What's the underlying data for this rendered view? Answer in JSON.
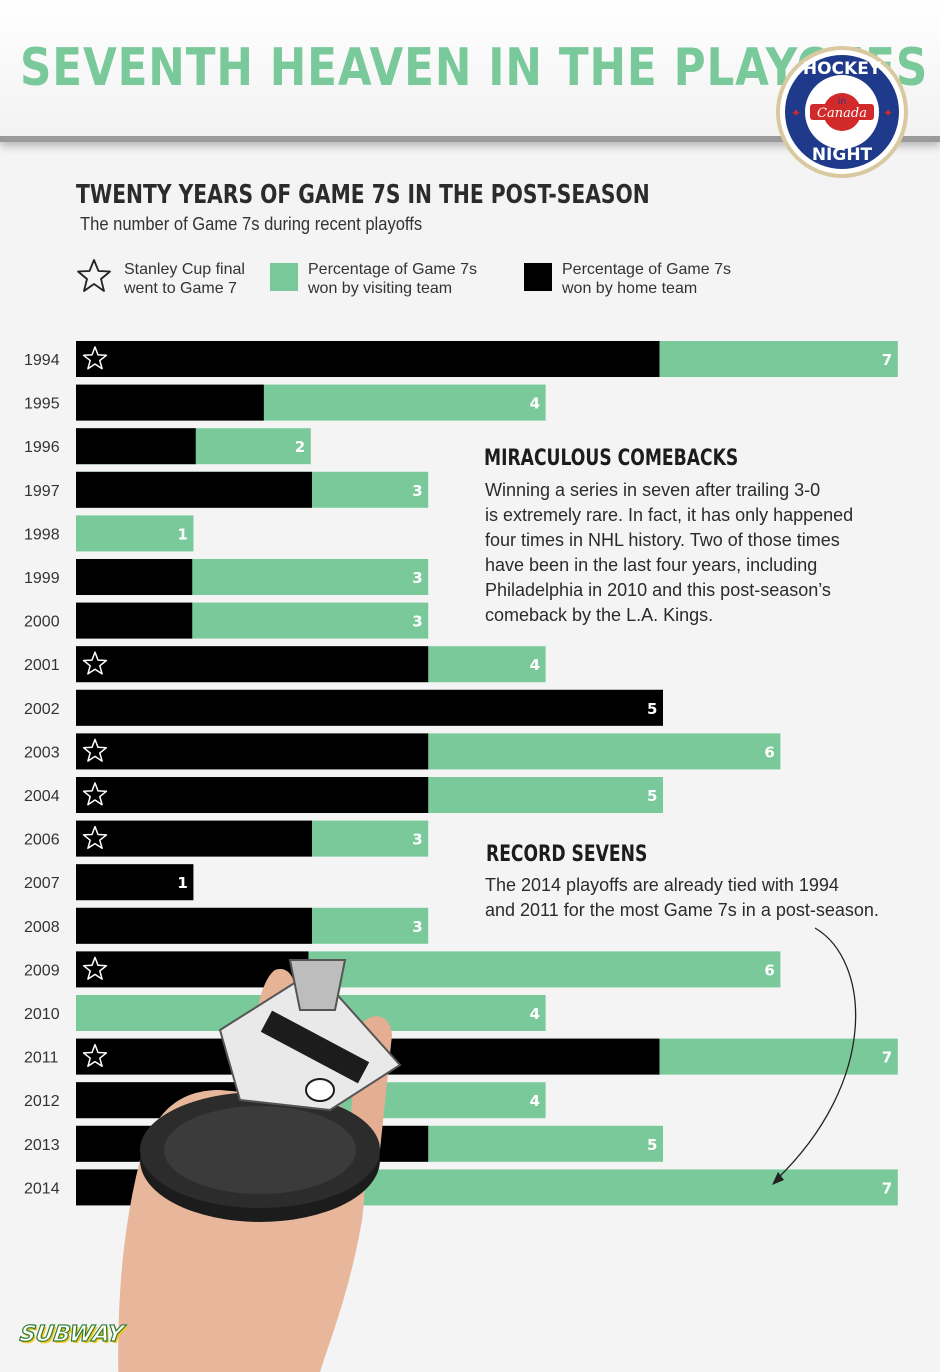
{
  "header": {
    "title": "SEVENTH HEAVEN IN THE PLAYOFFS"
  },
  "logo": {
    "line1": "HOCKEY",
    "line2": "in",
    "line3": "Canada",
    "line4": "NIGHT"
  },
  "chart_heading": "TWENTY YEARS OF GAME 7S IN THE POST-SEASON",
  "chart_subheading": "The number of Game 7s during recent playoffs",
  "legend": {
    "star": {
      "line1": "Stanley Cup final",
      "line2": "went to Game 7"
    },
    "visiting": {
      "line1": "Percentage of Game 7s",
      "line2": "won by visiting team",
      "color": "#79c99a"
    },
    "home": {
      "line1": "Percentage of Game 7s",
      "line2": "won by home team",
      "color": "#000000"
    }
  },
  "annotations": {
    "comebacks": {
      "heading": "MIRACULOUS COMEBACKS",
      "lines": [
        "Winning a series in seven after trailing 3-0",
        "is extremely rare. In fact, it has only happened",
        "four times in NHL history. Two of those times",
        "have been in the last four years, including",
        "Philadelphia in 2010 and this post-season’s",
        "comeback by the L.A. Kings."
      ]
    },
    "record": {
      "heading": "RECORD SEVENS",
      "lines": [
        "The 2014 playoffs are already tied with 1994",
        "and 2011 for the most Game 7s in a post-season."
      ]
    }
  },
  "sponsor": "SUBWAY",
  "chart_data": {
    "type": "bar",
    "orientation": "horizontal",
    "stacked": true,
    "categories": [
      "1994",
      "1995",
      "1996",
      "1997",
      "1998",
      "1999",
      "2000",
      "2001",
      "2002",
      "2003",
      "2004",
      "2006",
      "2007",
      "2008",
      "2009",
      "2010",
      "2011",
      "2012",
      "2013",
      "2014"
    ],
    "total_game7s": [
      7,
      4,
      2,
      3,
      1,
      3,
      3,
      4,
      5,
      6,
      5,
      3,
      1,
      3,
      6,
      4,
      7,
      4,
      5,
      7
    ],
    "home_share": [
      0.71,
      0.4,
      0.51,
      0.67,
      0.0,
      0.33,
      0.33,
      0.75,
      1.0,
      0.5,
      0.6,
      0.67,
      1.0,
      0.67,
      0.33,
      0.0,
      0.71,
      0.5,
      0.6,
      0.29
    ],
    "cup_final_game7": [
      true,
      false,
      false,
      false,
      false,
      false,
      false,
      true,
      false,
      true,
      true,
      true,
      false,
      false,
      true,
      false,
      true,
      false,
      false,
      false
    ],
    "colors": {
      "home": "#000000",
      "visiting": "#79c99a"
    }
  }
}
